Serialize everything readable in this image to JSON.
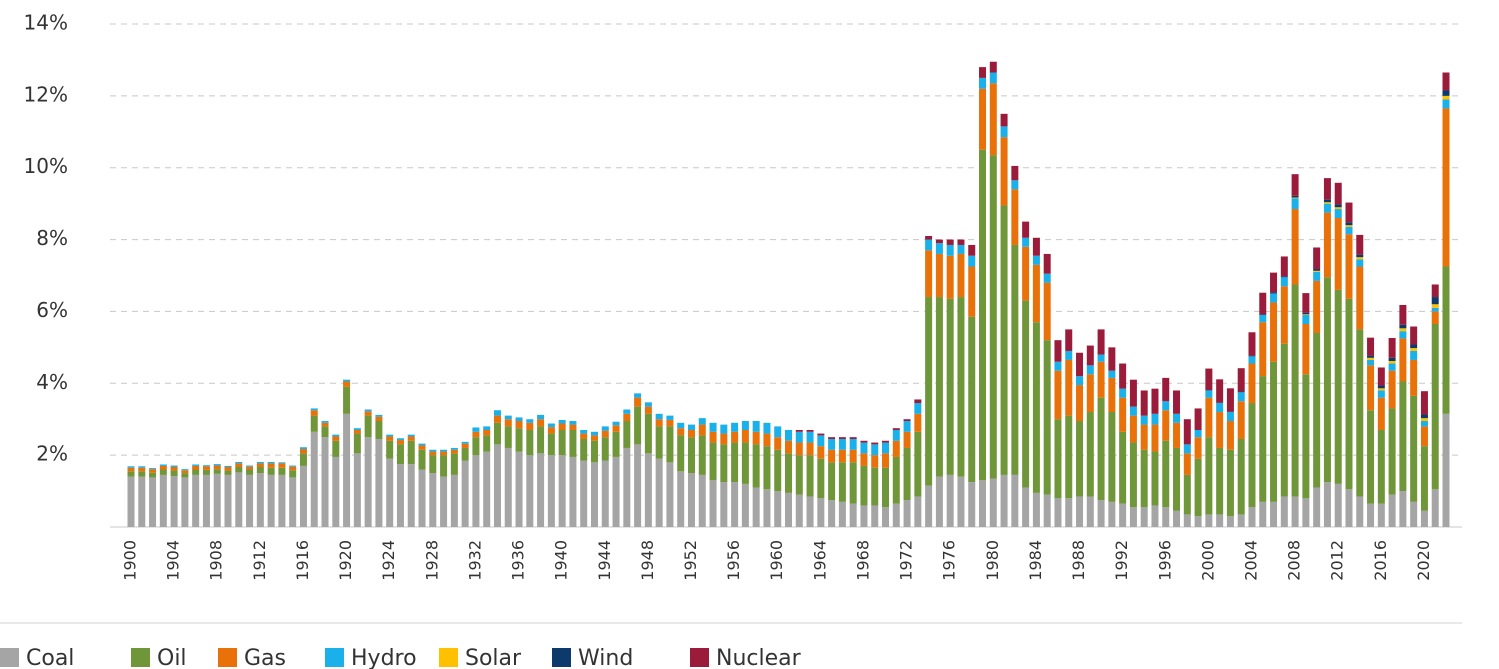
{
  "chart_data": {
    "type": "stacked_bar",
    "categories": [
      "1900",
      null,
      null,
      null,
      "1904",
      null,
      null,
      null,
      "1908",
      null,
      null,
      null,
      "1912",
      null,
      null,
      null,
      "1916",
      null,
      null,
      null,
      "1920",
      null,
      null,
      null,
      "1924",
      null,
      null,
      null,
      "1928",
      null,
      null,
      null,
      "1932",
      null,
      null,
      null,
      "1936",
      null,
      null,
      null,
      "1940",
      null,
      null,
      null,
      "1944",
      null,
      null,
      null,
      "1948",
      null,
      null,
      null,
      "1952",
      null,
      null,
      null,
      "1956",
      null,
      null,
      null,
      "1960",
      null,
      null,
      null,
      "1964",
      null,
      null,
      null,
      "1968",
      null,
      null,
      null,
      "1972",
      null,
      null,
      null,
      "1976",
      null,
      null,
      null,
      "1980",
      null,
      null,
      null,
      "1984",
      null,
      null,
      null,
      "1988",
      null,
      null,
      null,
      "1992",
      null,
      null,
      null,
      "1996",
      null,
      null,
      null,
      "2000",
      null,
      null,
      null,
      "2004",
      null,
      null,
      null,
      "2008",
      null,
      null,
      null,
      "2012",
      null,
      null,
      null,
      "2016",
      null,
      null,
      null,
      "2020",
      null,
      null
    ],
    "series": [
      {
        "name": "Coal",
        "color": "#a5a5a5",
        "values": [
          1.4,
          1.4,
          1.38,
          1.45,
          1.42,
          1.38,
          1.45,
          1.45,
          1.48,
          1.45,
          1.52,
          1.45,
          1.5,
          1.45,
          1.45,
          1.38,
          1.7,
          2.65,
          2.5,
          1.95,
          3.15,
          2.05,
          2.5,
          2.45,
          1.9,
          1.75,
          1.75,
          1.6,
          1.5,
          1.4,
          1.45,
          1.85,
          2.0,
          2.1,
          2.3,
          2.2,
          2.1,
          2.0,
          2.05,
          2.0,
          2.0,
          1.95,
          1.85,
          1.8,
          1.85,
          1.95,
          2.2,
          2.3,
          2.05,
          1.9,
          1.8,
          1.55,
          1.5,
          1.45,
          1.3,
          1.25,
          1.25,
          1.2,
          1.1,
          1.05,
          1.0,
          0.95,
          0.9,
          0.85,
          0.8,
          0.75,
          0.7,
          0.65,
          0.6,
          0.6,
          0.55,
          0.65,
          0.75,
          0.85,
          1.15,
          1.4,
          1.45,
          1.4,
          1.25,
          1.3,
          1.35,
          1.45,
          1.45,
          1.1,
          0.95,
          0.9,
          0.8,
          0.8,
          0.85,
          0.85,
          0.75,
          0.7,
          0.65,
          0.55,
          0.55,
          0.6,
          0.55,
          0.45,
          0.35,
          0.3,
          0.35,
          0.35,
          0.3,
          0.35,
          0.55,
          0.7,
          0.7,
          0.85,
          0.85,
          0.8,
          1.1,
          1.25,
          1.2,
          1.05,
          0.85,
          0.65,
          0.65,
          0.9,
          1.0,
          0.7,
          0.45,
          1.05,
          3.15
        ]
      },
      {
        "name": "Oil",
        "color": "#70963a",
        "values": [
          0.15,
          0.15,
          0.13,
          0.15,
          0.15,
          0.12,
          0.15,
          0.14,
          0.13,
          0.12,
          0.15,
          0.15,
          0.17,
          0.2,
          0.2,
          0.2,
          0.35,
          0.45,
          0.3,
          0.45,
          0.75,
          0.55,
          0.6,
          0.5,
          0.5,
          0.55,
          0.65,
          0.55,
          0.5,
          0.6,
          0.6,
          0.35,
          0.5,
          0.45,
          0.6,
          0.6,
          0.65,
          0.7,
          0.75,
          0.6,
          0.7,
          0.75,
          0.6,
          0.6,
          0.65,
          0.7,
          0.75,
          1.05,
          1.1,
          0.9,
          1.0,
          1.0,
          1.0,
          1.1,
          1.05,
          1.05,
          1.1,
          1.15,
          1.2,
          1.2,
          1.15,
          1.1,
          1.1,
          1.15,
          1.1,
          1.05,
          1.1,
          1.15,
          1.1,
          1.05,
          1.1,
          1.3,
          1.45,
          1.8,
          5.25,
          5.0,
          4.9,
          5.0,
          4.6,
          9.2,
          9.0,
          7.5,
          6.4,
          5.2,
          4.75,
          4.3,
          2.2,
          2.3,
          2.1,
          2.35,
          2.85,
          2.5,
          2.0,
          1.8,
          1.6,
          1.5,
          1.85,
          1.75,
          1.1,
          1.6,
          2.15,
          1.85,
          1.85,
          2.1,
          2.9,
          3.5,
          3.9,
          4.25,
          5.9,
          3.45,
          4.3,
          5.7,
          5.4,
          5.3,
          4.65,
          2.6,
          2.05,
          2.4,
          3.05,
          2.95,
          1.8,
          4.6,
          4.1
        ]
      },
      {
        "name": "Gas",
        "color": "#e8710a",
        "values": [
          0.1,
          0.1,
          0.1,
          0.1,
          0.1,
          0.08,
          0.1,
          0.1,
          0.1,
          0.1,
          0.1,
          0.08,
          0.1,
          0.12,
          0.12,
          0.1,
          0.12,
          0.15,
          0.1,
          0.12,
          0.15,
          0.1,
          0.12,
          0.12,
          0.12,
          0.12,
          0.12,
          0.12,
          0.1,
          0.1,
          0.1,
          0.12,
          0.15,
          0.15,
          0.2,
          0.2,
          0.2,
          0.2,
          0.2,
          0.18,
          0.18,
          0.15,
          0.15,
          0.15,
          0.18,
          0.18,
          0.2,
          0.25,
          0.2,
          0.2,
          0.18,
          0.2,
          0.2,
          0.3,
          0.3,
          0.3,
          0.3,
          0.35,
          0.35,
          0.35,
          0.35,
          0.35,
          0.35,
          0.35,
          0.35,
          0.35,
          0.35,
          0.35,
          0.35,
          0.35,
          0.4,
          0.45,
          0.45,
          0.5,
          1.3,
          1.2,
          1.2,
          1.2,
          1.4,
          1.7,
          2.0,
          1.9,
          1.55,
          1.5,
          1.6,
          1.6,
          1.35,
          1.55,
          1.0,
          1.05,
          1.0,
          0.95,
          0.95,
          0.75,
          0.7,
          0.75,
          0.85,
          0.7,
          0.6,
          0.6,
          1.1,
          1.0,
          0.8,
          1.05,
          1.1,
          1.5,
          1.65,
          1.6,
          2.1,
          1.4,
          1.45,
          1.8,
          2.0,
          1.8,
          1.75,
          1.25,
          0.9,
          1.05,
          1.2,
          1.0,
          0.55,
          0.35,
          4.4
        ]
      },
      {
        "name": "Hydro",
        "color": "#1ab0ea",
        "values": [
          0.04,
          0.04,
          0.03,
          0.04,
          0.04,
          0.03,
          0.04,
          0.03,
          0.04,
          0.03,
          0.04,
          0.03,
          0.04,
          0.04,
          0.03,
          0.03,
          0.05,
          0.05,
          0.05,
          0.05,
          0.05,
          0.05,
          0.05,
          0.05,
          0.05,
          0.05,
          0.05,
          0.05,
          0.05,
          0.05,
          0.05,
          0.05,
          0.12,
          0.1,
          0.15,
          0.1,
          0.1,
          0.1,
          0.12,
          0.1,
          0.1,
          0.1,
          0.1,
          0.1,
          0.12,
          0.1,
          0.12,
          0.12,
          0.12,
          0.15,
          0.12,
          0.15,
          0.15,
          0.18,
          0.25,
          0.25,
          0.25,
          0.25,
          0.3,
          0.3,
          0.3,
          0.3,
          0.3,
          0.3,
          0.3,
          0.3,
          0.3,
          0.3,
          0.3,
          0.3,
          0.3,
          0.3,
          0.3,
          0.3,
          0.3,
          0.3,
          0.3,
          0.25,
          0.3,
          0.3,
          0.3,
          0.3,
          0.25,
          0.25,
          0.25,
          0.25,
          0.25,
          0.25,
          0.25,
          0.25,
          0.2,
          0.2,
          0.25,
          0.25,
          0.25,
          0.3,
          0.25,
          0.25,
          0.25,
          0.2,
          0.2,
          0.25,
          0.25,
          0.25,
          0.2,
          0.2,
          0.25,
          0.25,
          0.3,
          0.25,
          0.25,
          0.25,
          0.25,
          0.2,
          0.2,
          0.15,
          0.2,
          0.2,
          0.2,
          0.25,
          0.15,
          0.1,
          0.25
        ]
      },
      {
        "name": "Solar",
        "color": "#ffc000",
        "values": [
          0,
          0,
          0,
          0,
          0,
          0,
          0,
          0,
          0,
          0,
          0,
          0,
          0,
          0,
          0,
          0,
          0,
          0,
          0,
          0,
          0,
          0,
          0,
          0,
          0,
          0,
          0,
          0,
          0,
          0,
          0,
          0,
          0,
          0,
          0,
          0,
          0,
          0,
          0,
          0,
          0,
          0,
          0,
          0,
          0,
          0,
          0,
          0,
          0,
          0,
          0,
          0,
          0,
          0,
          0,
          0,
          0,
          0,
          0,
          0,
          0,
          0,
          0,
          0,
          0,
          0,
          0,
          0,
          0,
          0,
          0,
          0,
          0,
          0,
          0,
          0,
          0,
          0,
          0,
          0,
          0,
          0,
          0,
          0,
          0,
          0,
          0,
          0,
          0,
          0,
          0,
          0,
          0,
          0,
          0,
          0,
          0,
          0,
          0,
          0,
          0,
          0,
          0,
          0,
          0,
          0,
          0,
          0,
          0.02,
          0.02,
          0.03,
          0.04,
          0.05,
          0.05,
          0.06,
          0.06,
          0.06,
          0.07,
          0.08,
          0.08,
          0.08,
          0.1,
          0.1
        ]
      },
      {
        "name": "Wind",
        "color": "#0d3a6b",
        "values": [
          0,
          0,
          0,
          0,
          0,
          0,
          0,
          0,
          0,
          0,
          0,
          0,
          0,
          0,
          0,
          0,
          0,
          0,
          0,
          0,
          0,
          0,
          0,
          0,
          0,
          0,
          0,
          0,
          0,
          0,
          0,
          0,
          0,
          0,
          0,
          0,
          0,
          0,
          0,
          0,
          0,
          0,
          0,
          0,
          0,
          0,
          0,
          0,
          0,
          0,
          0,
          0,
          0,
          0,
          0,
          0,
          0,
          0,
          0,
          0,
          0,
          0,
          0,
          0,
          0,
          0,
          0,
          0,
          0,
          0,
          0,
          0,
          0,
          0,
          0,
          0,
          0,
          0,
          0,
          0,
          0,
          0,
          0,
          0,
          0,
          0,
          0,
          0,
          0,
          0,
          0,
          0,
          0,
          0,
          0,
          0,
          0,
          0,
          0,
          0,
          0.01,
          0.01,
          0.01,
          0.02,
          0.02,
          0.02,
          0.03,
          0.03,
          0.05,
          0.04,
          0.05,
          0.07,
          0.08,
          0.08,
          0.07,
          0.06,
          0.08,
          0.09,
          0.1,
          0.1,
          0.1,
          0.2,
          0.15
        ]
      },
      {
        "name": "Nuclear",
        "color": "#9b1b3a",
        "values": [
          0,
          0,
          0,
          0,
          0,
          0,
          0,
          0,
          0,
          0,
          0,
          0,
          0,
          0,
          0,
          0,
          0,
          0,
          0,
          0,
          0,
          0,
          0,
          0,
          0,
          0,
          0,
          0,
          0,
          0,
          0,
          0,
          0,
          0,
          0,
          0,
          0,
          0,
          0,
          0,
          0,
          0,
          0,
          0,
          0,
          0,
          0,
          0,
          0,
          0,
          0,
          0,
          0,
          0,
          0,
          0,
          0,
          0,
          0,
          0,
          0,
          0,
          0.05,
          0.05,
          0.05,
          0.05,
          0.05,
          0.05,
          0.05,
          0.05,
          0.05,
          0.05,
          0.05,
          0.1,
          0.1,
          0.1,
          0.15,
          0.15,
          0.3,
          0.3,
          0.3,
          0.35,
          0.4,
          0.45,
          0.5,
          0.55,
          0.6,
          0.6,
          0.65,
          0.55,
          0.7,
          0.65,
          0.7,
          0.75,
          0.7,
          0.7,
          0.65,
          0.65,
          0.7,
          0.6,
          0.6,
          0.65,
          0.65,
          0.65,
          0.65,
          0.6,
          0.55,
          0.55,
          0.6,
          0.55,
          0.6,
          0.6,
          0.6,
          0.55,
          0.55,
          0.5,
          0.5,
          0.55,
          0.55,
          0.5,
          0.65,
          0.35,
          0.5
        ]
      }
    ],
    "ylim": [
      0,
      14
    ],
    "yticks": [
      {
        "value": 2,
        "label": "2%"
      },
      {
        "value": 4,
        "label": "4%"
      },
      {
        "value": 6,
        "label": "6%"
      },
      {
        "value": 8,
        "label": "8%"
      },
      {
        "value": 10,
        "label": "10%"
      },
      {
        "value": 12,
        "label": "12%"
      },
      {
        "value": 14,
        "label": "14%"
      }
    ],
    "grid": true,
    "legend": "bottom"
  }
}
